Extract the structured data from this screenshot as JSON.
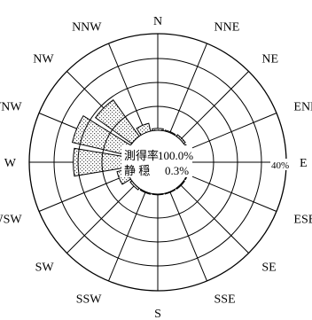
{
  "chart_data": {
    "type": "wind-rose",
    "directions": [
      "N",
      "NNE",
      "NE",
      "ENE",
      "E",
      "ESE",
      "SE",
      "SSE",
      "S",
      "SSW",
      "SW",
      "WSW",
      "W",
      "WNW",
      "NW",
      "NNW"
    ],
    "radial_max_percent": 40,
    "radial_tick_label": "40%",
    "annotation": {
      "rate_label": "測得率",
      "rate_value": "100.0%",
      "calm_label": "静 穏",
      "calm_value": "0.3%"
    },
    "values_percent": {
      "N": 0.8,
      "NNE": 0.4,
      "NE": 0.8,
      "ENE": 0.5,
      "E": 0.3,
      "ESE": 0.3,
      "SE": 0.4,
      "SSE": 0.3,
      "S": 0.3,
      "SSW": 0.4,
      "SW": 0.8,
      "WSW": 4.1,
      "W": 21.8,
      "WNW": 23.1,
      "NW": 18.5,
      "NNW": 3.3
    }
  }
}
